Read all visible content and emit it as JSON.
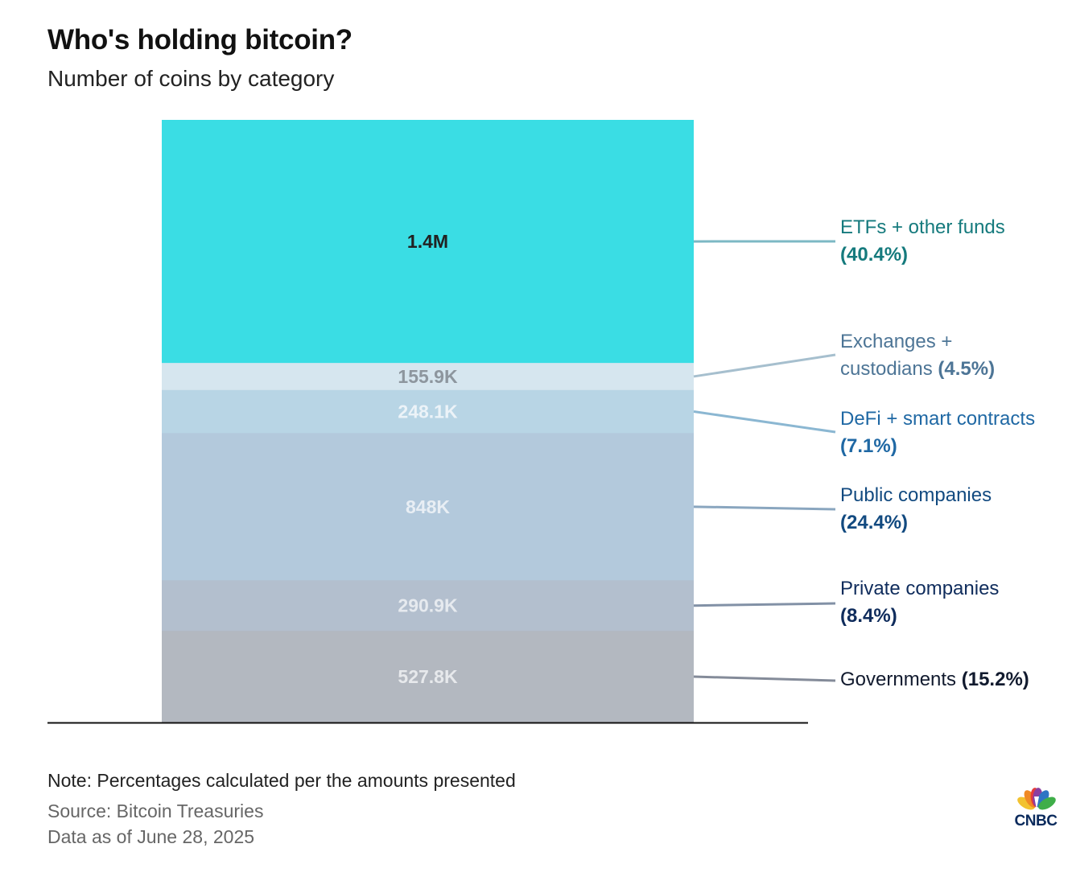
{
  "chart_data": {
    "type": "bar",
    "subtype": "stacked-single-column",
    "title": "Who's holding bitcoin?",
    "subtitle": "Number of coins by category",
    "unit": "coins",
    "segments_top_to_bottom": [
      {
        "category": "ETFs + other funds",
        "value": 1400000,
        "value_label": "1.4M",
        "percent_label": "(40.4%)",
        "color": "#3adde4",
        "label_color": "#222222",
        "legend_color": "#157a7d",
        "line_color": "#7cb8c4"
      },
      {
        "category": "Exchanges + custodians",
        "value": 155900,
        "value_label": "155.9K",
        "percent_label": "(4.5%)",
        "color": "#d6e6ef",
        "label_color": "#8d969e",
        "legend_color": "#4d7596",
        "line_color": "#a6bfce"
      },
      {
        "category": "DeFi + smart contracts",
        "value": 248100,
        "value_label": "248.1K",
        "percent_label": "(7.1%)",
        "color": "#b8d5e5",
        "label_color": "#ecf3f8",
        "legend_color": "#1f68a4",
        "line_color": "#8bb7d2"
      },
      {
        "category": "Public companies",
        "value": 848000,
        "value_label": "848K",
        "percent_label": "(24.4%)",
        "color": "#b3c9dc",
        "label_color": "#e8eef4",
        "legend_color": "#124a80",
        "line_color": "#8aa6bf"
      },
      {
        "category": "Private companies",
        "value": 290900,
        "value_label": "290.9K",
        "percent_label": "(8.4%)",
        "color": "#b3bfce",
        "label_color": "#e6eaef",
        "legend_color": "#0f2c5c",
        "line_color": "#8291a6"
      },
      {
        "category": "Governments",
        "value": 527800,
        "value_label": "527.8K",
        "percent_label": "(15.2%)",
        "color": "#b3b8c0",
        "label_color": "#e7e9ec",
        "legend_color": "#111a2e",
        "line_color": "#848b99"
      }
    ],
    "legend_lines": [
      {
        "first": "ETFs + other funds",
        "second": "",
        "pct": "(40.4%)",
        "pct_on_first": false
      },
      {
        "first": "Exchanges +",
        "second": "custodians",
        "pct": "(4.5%)",
        "pct_on_first": false
      },
      {
        "first": "DeFi + smart contracts",
        "second": "",
        "pct": "(7.1%)",
        "pct_on_first": false
      },
      {
        "first": "Public companies",
        "second": "",
        "pct": "(24.4%)",
        "pct_on_first": false
      },
      {
        "first": "Private companies",
        "second": "",
        "pct": "(8.4%)",
        "pct_on_first": false
      },
      {
        "first": "Governments",
        "second": "",
        "pct": "(15.2%)",
        "pct_on_first": true
      }
    ]
  },
  "footer": {
    "note": "Note: Percentages calculated per the amounts presented",
    "source": "Source: Bitcoin Treasuries",
    "as_of": "Data as of June 28, 2025"
  },
  "brand": {
    "logo_text": "CNBC",
    "logo_colors": [
      "#f2c230",
      "#f08a24",
      "#e53d3a",
      "#8b3fa1",
      "#2e74c4",
      "#3fae49"
    ]
  }
}
